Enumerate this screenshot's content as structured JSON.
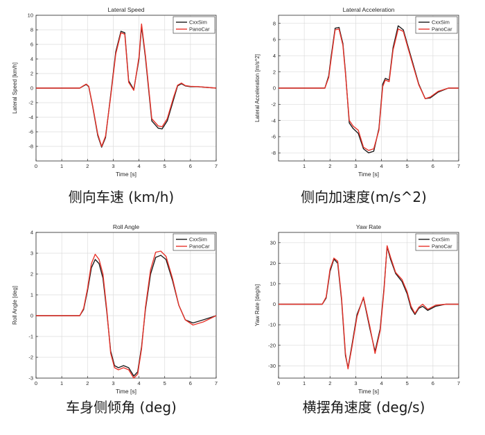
{
  "chart_data": [
    {
      "type": "line",
      "title": "Lateral Speed",
      "xlabel": "Time [s]",
      "ylabel": "Lateral Speed [km/h]",
      "caption": "侧向车速 (km/h)",
      "xlim": [
        0,
        7
      ],
      "ylim": [
        -10,
        10
      ],
      "xticks": [
        0,
        1,
        2,
        3,
        4,
        5,
        6,
        7
      ],
      "yticks": [
        -8,
        -6,
        -4,
        -2,
        0,
        2,
        4,
        6,
        8,
        10
      ],
      "grid": true,
      "legend_position": "top-right",
      "series": [
        {
          "name": "CxxSim",
          "color": "#1a1a1a",
          "x": [
            0,
            1.7,
            1.85,
            1.95,
            2.05,
            2.2,
            2.4,
            2.55,
            2.7,
            2.9,
            3.1,
            3.3,
            3.45,
            3.6,
            3.8,
            4.0,
            4.1,
            4.25,
            4.5,
            4.75,
            4.9,
            5.1,
            5.35,
            5.5,
            5.65,
            5.8,
            6.0,
            6.3,
            7.0
          ],
          "y": [
            0,
            0,
            0.3,
            0.5,
            0.2,
            -2.5,
            -6.5,
            -8.1,
            -6.8,
            -1.0,
            5.0,
            7.8,
            7.6,
            1.0,
            -0.2,
            4.0,
            8.5,
            4.2,
            -4.5,
            -5.5,
            -5.6,
            -4.5,
            -1.5,
            0.3,
            0.6,
            0.3,
            0.2,
            0.2,
            0
          ]
        },
        {
          "name": "PanoCar",
          "color": "#e8332a",
          "x": [
            0,
            1.7,
            1.85,
            1.95,
            2.05,
            2.2,
            2.4,
            2.55,
            2.7,
            2.9,
            3.1,
            3.3,
            3.45,
            3.6,
            3.8,
            4.0,
            4.1,
            4.25,
            4.5,
            4.75,
            4.9,
            5.1,
            5.35,
            5.5,
            5.65,
            5.8,
            6.0,
            6.3,
            7.0
          ],
          "y": [
            0,
            0,
            0.35,
            0.55,
            0.25,
            -2.4,
            -6.3,
            -8.0,
            -6.6,
            -1.2,
            4.7,
            7.6,
            7.4,
            0.8,
            -0.3,
            4.3,
            8.8,
            4.5,
            -4.2,
            -5.2,
            -5.3,
            -4.2,
            -1.2,
            0.4,
            0.7,
            0.35,
            0.25,
            0.2,
            0
          ]
        }
      ]
    },
    {
      "type": "line",
      "title": "Lateral Acceleration",
      "xlabel": "Time [s]",
      "ylabel": "Lateral Acceleration [m/s^2]",
      "caption": "侧向加速度(m/s^2)",
      "xlim": [
        0,
        7
      ],
      "ylim": [
        -9,
        9
      ],
      "xticks": [
        1,
        2,
        3,
        4,
        5,
        6,
        7
      ],
      "yticks": [
        -8,
        -6,
        -4,
        -2,
        0,
        2,
        4,
        6,
        8
      ],
      "grid": true,
      "legend_position": "top-right",
      "series": [
        {
          "name": "CxxSim",
          "color": "#1a1a1a",
          "x": [
            0,
            1.8,
            1.95,
            2.05,
            2.2,
            2.35,
            2.5,
            2.6,
            2.75,
            2.9,
            3.1,
            3.3,
            3.5,
            3.7,
            3.9,
            4.05,
            4.15,
            4.3,
            4.45,
            4.65,
            4.85,
            5.0,
            5.2,
            5.45,
            5.7,
            5.9,
            6.2,
            6.6,
            7.0
          ],
          "y": [
            0,
            0,
            1.5,
            4.0,
            7.4,
            7.5,
            5.5,
            2.0,
            -4.3,
            -5.0,
            -5.6,
            -7.5,
            -8.0,
            -7.8,
            -5.0,
            0.5,
            1.2,
            1.0,
            5.0,
            7.7,
            7.2,
            5.5,
            3.3,
            0.5,
            -1.3,
            -1.2,
            -0.5,
            0,
            0
          ]
        },
        {
          "name": "PanoCar",
          "color": "#e8332a",
          "x": [
            0,
            1.8,
            1.95,
            2.05,
            2.2,
            2.35,
            2.5,
            2.6,
            2.75,
            2.9,
            3.1,
            3.3,
            3.5,
            3.7,
            3.9,
            4.05,
            4.15,
            4.3,
            4.45,
            4.65,
            4.85,
            5.0,
            5.2,
            5.45,
            5.7,
            5.9,
            6.2,
            6.6,
            7.0
          ],
          "y": [
            0,
            0,
            1.3,
            3.7,
            7.2,
            7.3,
            5.3,
            1.8,
            -4.0,
            -4.7,
            -5.2,
            -7.3,
            -7.7,
            -7.5,
            -5.2,
            0.2,
            1.0,
            0.8,
            4.7,
            7.3,
            7.0,
            5.3,
            3.1,
            0.4,
            -1.3,
            -1.1,
            -0.4,
            0,
            0
          ]
        }
      ]
    },
    {
      "type": "line",
      "title": "Roll Angle",
      "xlabel": "Time [s]",
      "ylabel": "Roll Angle [deg]",
      "caption": "车身侧倾角 (deg)",
      "xlim": [
        0,
        7
      ],
      "ylim": [
        -3,
        4
      ],
      "xticks": [
        0,
        1,
        2,
        3,
        4,
        5,
        6,
        7
      ],
      "yticks": [
        -3,
        -2,
        -1,
        0,
        1,
        2,
        3,
        4
      ],
      "grid": true,
      "legend_position": "top-right",
      "series": [
        {
          "name": "CxxSim",
          "color": "#1a1a1a",
          "x": [
            0,
            1.7,
            1.85,
            2.0,
            2.15,
            2.3,
            2.45,
            2.6,
            2.75,
            2.9,
            3.05,
            3.2,
            3.4,
            3.6,
            3.8,
            3.95,
            4.1,
            4.25,
            4.45,
            4.65,
            4.85,
            5.05,
            5.3,
            5.55,
            5.8,
            6.1,
            6.5,
            7.0
          ],
          "y": [
            0,
            0,
            0.3,
            1.2,
            2.3,
            2.7,
            2.5,
            1.8,
            0.2,
            -1.7,
            -2.4,
            -2.5,
            -2.4,
            -2.5,
            -2.9,
            -2.7,
            -1.5,
            0.3,
            2.0,
            2.8,
            2.9,
            2.7,
            1.7,
            0.5,
            -0.2,
            -0.35,
            -0.2,
            0
          ]
        },
        {
          "name": "PanoCar",
          "color": "#e8332a",
          "x": [
            0,
            1.7,
            1.85,
            2.0,
            2.15,
            2.3,
            2.45,
            2.6,
            2.75,
            2.9,
            3.05,
            3.2,
            3.4,
            3.6,
            3.8,
            3.95,
            4.1,
            4.25,
            4.45,
            4.65,
            4.85,
            5.05,
            5.3,
            5.55,
            5.8,
            6.1,
            6.5,
            7.0
          ],
          "y": [
            0,
            0,
            0.35,
            1.3,
            2.5,
            2.95,
            2.7,
            2.0,
            0.3,
            -1.8,
            -2.5,
            -2.6,
            -2.5,
            -2.6,
            -3.0,
            -2.8,
            -1.6,
            0.4,
            2.2,
            3.05,
            3.1,
            2.85,
            1.8,
            0.5,
            -0.2,
            -0.45,
            -0.3,
            0
          ]
        }
      ]
    },
    {
      "type": "line",
      "title": "Yaw Rate",
      "xlabel": "Time [s]",
      "ylabel": "Yaw Rate [deg/s]",
      "caption": "横摆角速度 (deg/s)",
      "xlim": [
        0,
        7
      ],
      "ylim": [
        -36,
        35
      ],
      "xticks": [
        0,
        1,
        2,
        3,
        4,
        5,
        6,
        7
      ],
      "yticks": [
        -30,
        -20,
        -10,
        0,
        10,
        20,
        30
      ],
      "grid": true,
      "legend_position": "top-right",
      "series": [
        {
          "name": "CxxSim",
          "color": "#1a1a1a",
          "x": [
            0,
            1.7,
            1.85,
            2.0,
            2.15,
            2.3,
            2.45,
            2.6,
            2.7,
            2.85,
            3.05,
            3.3,
            3.55,
            3.75,
            3.95,
            4.1,
            4.22,
            4.35,
            4.55,
            4.8,
            5.0,
            5.15,
            5.3,
            5.45,
            5.6,
            5.8,
            6.1,
            6.5,
            7.0
          ],
          "y": [
            0,
            0,
            3,
            16,
            22,
            20,
            2,
            -25,
            -31,
            -20,
            -5,
            3,
            -12,
            -23,
            -12,
            8,
            28,
            22,
            15,
            11,
            5,
            -2,
            -5,
            -2,
            -1,
            -3,
            -1,
            0,
            0
          ]
        },
        {
          "name": "PanoCar",
          "color": "#e8332a",
          "x": [
            0,
            1.7,
            1.85,
            2.0,
            2.15,
            2.3,
            2.45,
            2.6,
            2.7,
            2.85,
            3.05,
            3.3,
            3.55,
            3.75,
            3.95,
            4.1,
            4.22,
            4.35,
            4.55,
            4.8,
            5.0,
            5.15,
            5.3,
            5.45,
            5.6,
            5.8,
            6.1,
            6.5,
            7.0
          ],
          "y": [
            0,
            0,
            3.5,
            17,
            22.5,
            21,
            3,
            -24,
            -31.5,
            -21,
            -6,
            3.5,
            -11,
            -24,
            -13,
            7,
            28.5,
            23,
            15.5,
            12,
            6,
            -1,
            -4.5,
            -1.5,
            0,
            -2.5,
            -0.5,
            0,
            0
          ]
        }
      ]
    }
  ]
}
